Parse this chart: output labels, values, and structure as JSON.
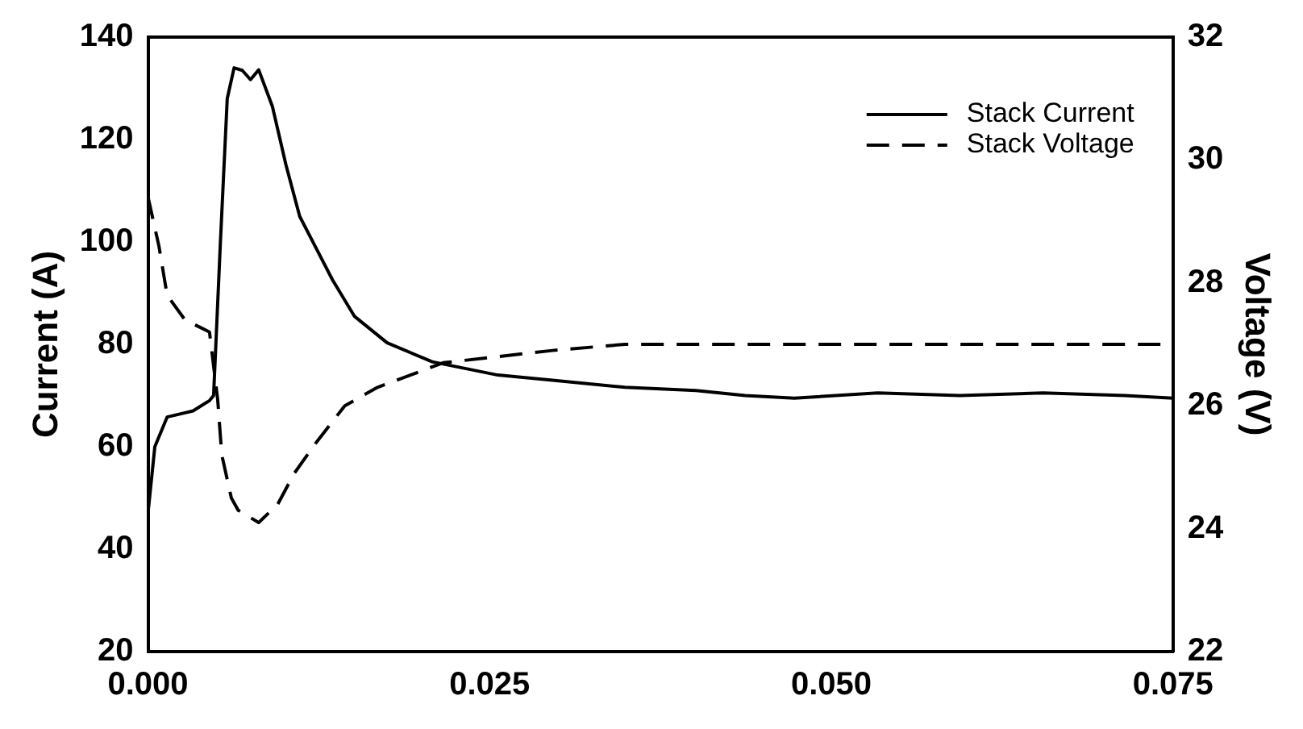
{
  "chart_data": {
    "type": "line",
    "ylabel": "Current (A)",
    "y2label": "Voltage (V)",
    "xlim": [
      0,
      0.075
    ],
    "xticks": [
      {
        "value": 0,
        "label": "0.000"
      },
      {
        "value": 0.025,
        "label": "0.025"
      },
      {
        "value": 0.05,
        "label": "0.050"
      },
      {
        "value": 0.075,
        "label": "0.075"
      }
    ],
    "ylim": [
      20,
      140
    ],
    "yticks": [
      20,
      40,
      60,
      80,
      100,
      120,
      140
    ],
    "y2lim": [
      22,
      32
    ],
    "y2ticks": [
      22,
      24,
      26,
      28,
      30,
      32
    ],
    "legend": "top right",
    "marker": "none",
    "grid": false,
    "series": [
      {
        "name": "Stack Current",
        "color": "#000000",
        "line_style": "solid",
        "x": [
          0,
          0.0005,
          0.0014,
          0.0033,
          0.0045,
          0.0048,
          0.0053,
          0.0058,
          0.0063,
          0.0069,
          0.0075,
          0.0081,
          0.0091,
          0.0101,
          0.0111,
          0.0123,
          0.0135,
          0.0151,
          0.0175,
          0.0208,
          0.0256,
          0.0296,
          0.0349,
          0.0401,
          0.0437,
          0.0473,
          0.0534,
          0.0594,
          0.0655,
          0.0715,
          0.075
        ],
        "values": [
          47,
          60,
          65.8,
          67,
          69,
          70,
          100,
          128,
          134,
          133.5,
          131.7,
          133.6,
          126.5,
          115,
          105,
          98.8,
          92.6,
          85.5,
          80.3,
          76.6,
          74,
          73,
          71.6,
          71,
          70,
          69.5,
          70.5,
          70,
          70.5,
          70,
          69.5
        ]
      },
      {
        "name": "Stack Voltage",
        "color": "#000000",
        "line_style": "dashed",
        "axis": "y2",
        "x": [
          0,
          0.0008,
          0.0014,
          0.0027,
          0.0045,
          0.0051,
          0.0054,
          0.0061,
          0.0066,
          0.0081,
          0.0095,
          0.0107,
          0.0123,
          0.0144,
          0.0168,
          0.0192,
          0.0216,
          0.0256,
          0.0296,
          0.0349,
          0.045,
          0.06,
          0.075
        ],
        "values": [
          29.4,
          28.6,
          27.8,
          27.4,
          27.2,
          26.1,
          25.2,
          24.5,
          24.3,
          24.1,
          24.4,
          24.9,
          25.4,
          26.0,
          26.3,
          26.5,
          26.7,
          26.8,
          26.9,
          27.0,
          27.0,
          27.0,
          27.0
        ]
      }
    ]
  }
}
